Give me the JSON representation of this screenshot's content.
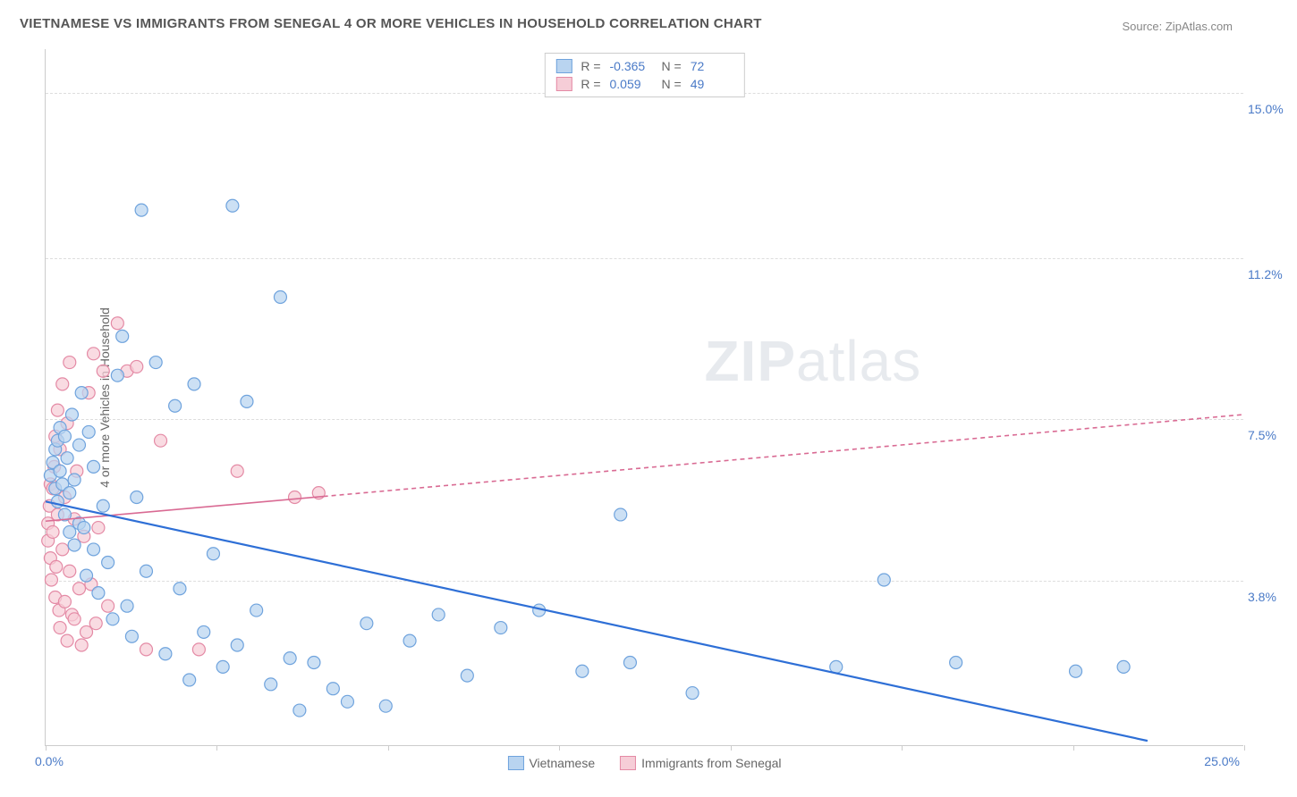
{
  "title": "VIETNAMESE VS IMMIGRANTS FROM SENEGAL 4 OR MORE VEHICLES IN HOUSEHOLD CORRELATION CHART",
  "source": "Source: ZipAtlas.com",
  "watermark": {
    "brand": "ZIP",
    "suffix": "atlas"
  },
  "ylabel": "4 or more Vehicles in Household",
  "axes": {
    "x_min": 0.0,
    "x_max": 25.0,
    "y_min": 0.0,
    "y_max": 16.0,
    "x_origin_label": "0.0%",
    "x_max_label": "25.0%",
    "x_tick_positions": [
      0,
      3.57,
      7.14,
      10.71,
      14.29,
      17.86,
      21.43,
      25.0
    ]
  },
  "y_gridlines": [
    {
      "value": 15.0,
      "label": "15.0%"
    },
    {
      "value": 11.2,
      "label": "11.2%"
    },
    {
      "value": 7.5,
      "label": "7.5%"
    },
    {
      "value": 3.8,
      "label": "3.8%"
    }
  ],
  "series": {
    "vietnamese": {
      "label": "Vietnamese",
      "R": "-0.365",
      "N": "72",
      "fill": "#b9d4f0",
      "stroke": "#6fa3dd",
      "line_color": "#2e6fd6",
      "line_dash": "none",
      "line_width": 2.2,
      "trend": {
        "x1": 0.0,
        "y1": 5.6,
        "x2": 23.0,
        "y2": 0.1
      },
      "points": [
        [
          0.1,
          6.2
        ],
        [
          0.15,
          6.5
        ],
        [
          0.2,
          5.9
        ],
        [
          0.2,
          6.8
        ],
        [
          0.25,
          7.0
        ],
        [
          0.25,
          5.6
        ],
        [
          0.3,
          6.3
        ],
        [
          0.3,
          7.3
        ],
        [
          0.35,
          6.0
        ],
        [
          0.4,
          7.1
        ],
        [
          0.4,
          5.3
        ],
        [
          0.45,
          6.6
        ],
        [
          0.5,
          5.8
        ],
        [
          0.5,
          4.9
        ],
        [
          0.55,
          7.6
        ],
        [
          0.6,
          6.1
        ],
        [
          0.6,
          4.6
        ],
        [
          0.7,
          5.1
        ],
        [
          0.7,
          6.9
        ],
        [
          0.75,
          8.1
        ],
        [
          0.8,
          5.0
        ],
        [
          0.85,
          3.9
        ],
        [
          0.9,
          7.2
        ],
        [
          1.0,
          4.5
        ],
        [
          1.0,
          6.4
        ],
        [
          1.1,
          3.5
        ],
        [
          1.2,
          5.5
        ],
        [
          1.3,
          4.2
        ],
        [
          1.4,
          2.9
        ],
        [
          1.5,
          8.5
        ],
        [
          1.6,
          9.4
        ],
        [
          1.7,
          3.2
        ],
        [
          1.8,
          2.5
        ],
        [
          1.9,
          5.7
        ],
        [
          2.0,
          12.3
        ],
        [
          2.1,
          4.0
        ],
        [
          2.3,
          8.8
        ],
        [
          2.5,
          2.1
        ],
        [
          2.7,
          7.8
        ],
        [
          2.8,
          3.6
        ],
        [
          3.0,
          1.5
        ],
        [
          3.1,
          8.3
        ],
        [
          3.3,
          2.6
        ],
        [
          3.5,
          4.4
        ],
        [
          3.7,
          1.8
        ],
        [
          3.9,
          12.4
        ],
        [
          4.0,
          2.3
        ],
        [
          4.2,
          7.9
        ],
        [
          4.4,
          3.1
        ],
        [
          4.7,
          1.4
        ],
        [
          4.9,
          10.3
        ],
        [
          5.1,
          2.0
        ],
        [
          5.3,
          0.8
        ],
        [
          5.6,
          1.9
        ],
        [
          6.0,
          1.3
        ],
        [
          6.3,
          1.0
        ],
        [
          6.7,
          2.8
        ],
        [
          7.1,
          0.9
        ],
        [
          7.6,
          2.4
        ],
        [
          8.2,
          3.0
        ],
        [
          8.8,
          1.6
        ],
        [
          9.5,
          2.7
        ],
        [
          10.3,
          3.1
        ],
        [
          11.2,
          1.7
        ],
        [
          12.0,
          5.3
        ],
        [
          12.2,
          1.9
        ],
        [
          13.5,
          1.2
        ],
        [
          16.5,
          1.8
        ],
        [
          17.5,
          3.8
        ],
        [
          19.0,
          1.9
        ],
        [
          21.5,
          1.7
        ],
        [
          22.5,
          1.8
        ]
      ]
    },
    "senegal": {
      "label": "Immigrants from Senegal",
      "R": "0.059",
      "N": "49",
      "fill": "#f6cdd7",
      "stroke": "#e48aa5",
      "line_color": "#d96a93",
      "line_dash": "5,4",
      "line_width": 1.6,
      "trend_solid_until_x": 5.8,
      "trend": {
        "x1": 0.0,
        "y1": 5.15,
        "x2": 25.0,
        "y2": 7.6
      },
      "points": [
        [
          0.05,
          5.1
        ],
        [
          0.05,
          4.7
        ],
        [
          0.08,
          5.5
        ],
        [
          0.1,
          4.3
        ],
        [
          0.1,
          6.0
        ],
        [
          0.12,
          3.8
        ],
        [
          0.15,
          5.9
        ],
        [
          0.15,
          4.9
        ],
        [
          0.18,
          6.4
        ],
        [
          0.2,
          3.4
        ],
        [
          0.2,
          7.1
        ],
        [
          0.22,
          4.1
        ],
        [
          0.25,
          5.3
        ],
        [
          0.25,
          7.7
        ],
        [
          0.28,
          3.1
        ],
        [
          0.3,
          6.8
        ],
        [
          0.3,
          2.7
        ],
        [
          0.35,
          4.5
        ],
        [
          0.35,
          8.3
        ],
        [
          0.4,
          3.3
        ],
        [
          0.4,
          5.7
        ],
        [
          0.45,
          2.4
        ],
        [
          0.45,
          7.4
        ],
        [
          0.5,
          4.0
        ],
        [
          0.5,
          8.8
        ],
        [
          0.55,
          3.0
        ],
        [
          0.6,
          5.2
        ],
        [
          0.6,
          2.9
        ],
        [
          0.65,
          6.3
        ],
        [
          0.7,
          3.6
        ],
        [
          0.75,
          2.3
        ],
        [
          0.8,
          4.8
        ],
        [
          0.85,
          2.6
        ],
        [
          0.9,
          8.1
        ],
        [
          0.95,
          3.7
        ],
        [
          1.0,
          9.0
        ],
        [
          1.05,
          2.8
        ],
        [
          1.1,
          5.0
        ],
        [
          1.2,
          8.6
        ],
        [
          1.3,
          3.2
        ],
        [
          1.5,
          9.7
        ],
        [
          1.7,
          8.6
        ],
        [
          1.9,
          8.7
        ],
        [
          2.1,
          2.2
        ],
        [
          2.4,
          7.0
        ],
        [
          3.2,
          2.2
        ],
        [
          4.0,
          6.3
        ],
        [
          5.2,
          5.7
        ],
        [
          5.7,
          5.8
        ]
      ]
    }
  },
  "marker": {
    "radius": 7,
    "stroke_width": 1.2,
    "opacity": 0.72
  },
  "colors": {
    "background": "#ffffff",
    "grid": "#dddddd",
    "axis": "#cccccc",
    "tick_text": "#4a7ac7",
    "text": "#666666"
  }
}
